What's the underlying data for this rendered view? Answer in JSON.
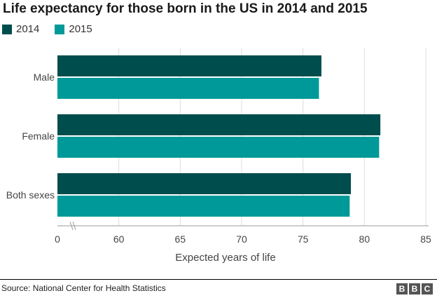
{
  "chart_data": {
    "type": "bar",
    "orientation": "horizontal",
    "title": "Life expectancy for those born in the US in 2014 and 2015",
    "categories": [
      "Male",
      "Female",
      "Both sexes"
    ],
    "series": [
      {
        "name": "2014",
        "color": "#004d4d",
        "values": [
          76.5,
          81.3,
          78.9
        ]
      },
      {
        "name": "2015",
        "color": "#009999",
        "values": [
          76.3,
          81.2,
          78.8
        ]
      }
    ],
    "xlabel": "Expected years of life",
    "xlim": [
      55,
      85
    ],
    "xticks": [
      60,
      65,
      70,
      75,
      80,
      85
    ],
    "axis_break_label": "0",
    "grid": true
  },
  "source": "Source: National Center for Health Statistics",
  "branding": {
    "letters": [
      "B",
      "B",
      "C"
    ]
  }
}
